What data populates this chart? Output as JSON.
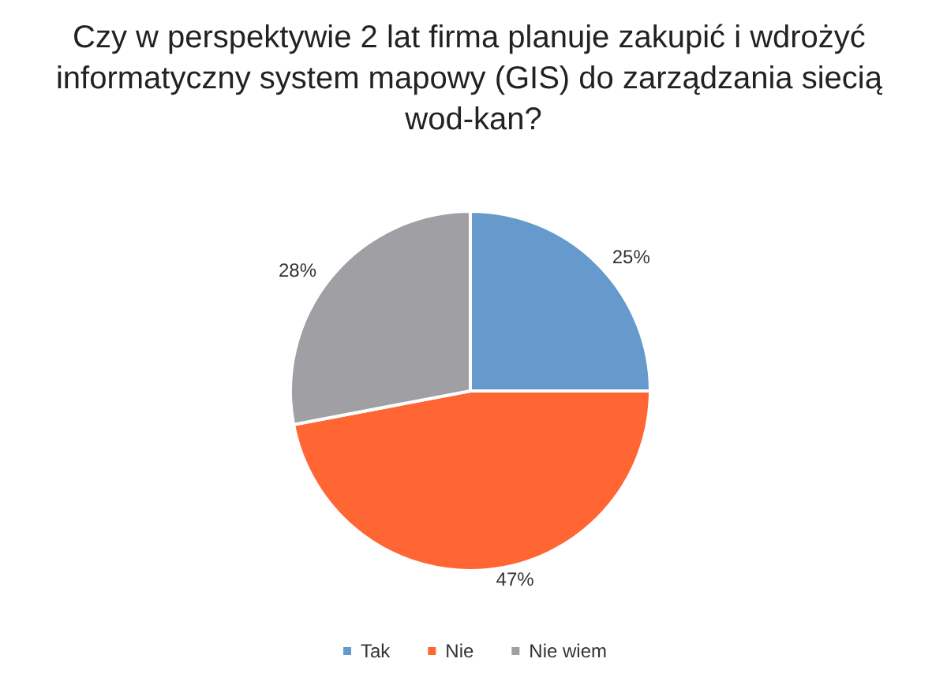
{
  "chart_data": {
    "type": "pie",
    "title": "Czy w perspektywie 2 lat firma planuje zakupić i wdrożyć informatyczny system mapowy (GIS) do zarządzania siecią wod-kan?",
    "categories": [
      "Tak",
      "Nie",
      "Nie wiem"
    ],
    "values": [
      25,
      47,
      28
    ],
    "value_labels": [
      "25%",
      "47%",
      "28%"
    ],
    "colors": [
      "#6699cc",
      "#ff6633",
      "#a09fa4"
    ],
    "legend": "bottom"
  }
}
